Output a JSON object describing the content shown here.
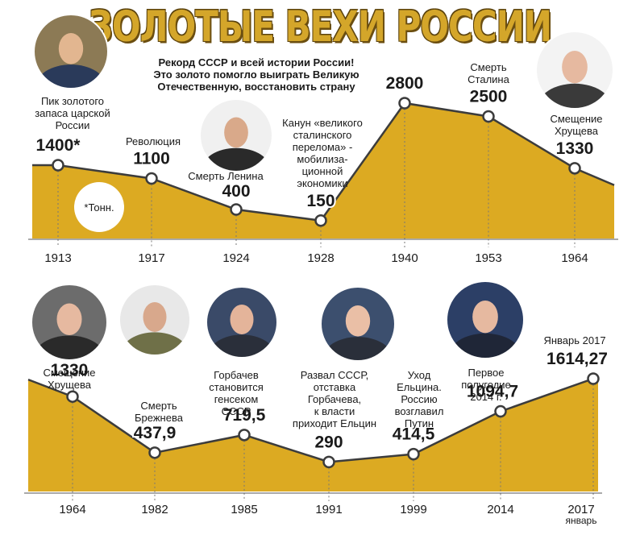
{
  "title": "ЗОЛОТЫЕ ВЕХИ РОССИИ",
  "colors": {
    "fill": "#dcaa22",
    "line": "#3c3c3c",
    "axis": "#555555",
    "title_gold": "#d4a62a"
  },
  "chart_data": [
    {
      "type": "area",
      "x": [
        "1913",
        "1917",
        "1924",
        "1928",
        "1940",
        "1953",
        "1964"
      ],
      "values": [
        1400,
        1100,
        400,
        150,
        2800,
        2500,
        1330
      ],
      "value_labels": [
        "1400*",
        "1100",
        "400",
        "150",
        "2800",
        "2500",
        "1330"
      ],
      "annotations": [
        [
          "Пик золотого",
          "запаса царской",
          "России"
        ],
        [
          "Революция"
        ],
        [
          "Смерть Ленина"
        ],
        [
          "Канун «великого",
          "сталинского",
          "перелома» -",
          "мобилиза-",
          "ционной",
          "экономики"
        ],
        [
          "Рекорд СССР и всей истории России!",
          "Это золото помогло выиграть Великую",
          "Отечественную, восстановить страну"
        ],
        [
          "Смерть",
          "Сталина"
        ],
        [
          "Смещение",
          "Хрущева"
        ]
      ],
      "unit_note": "*Тонн."
    },
    {
      "type": "area",
      "x": [
        "1964",
        "1982",
        "1985",
        "1991",
        "1999",
        "2014",
        "2017"
      ],
      "x_sub": [
        "",
        "",
        "",
        "",
        "",
        "",
        "январь"
      ],
      "values": [
        1330,
        437.9,
        719.5,
        290,
        414.5,
        1094.7,
        1614.27
      ],
      "value_labels": [
        "1330",
        "437,9",
        "719,5",
        "290",
        "414,5",
        "1094,7",
        "1614,27"
      ],
      "annotations": [
        [
          "Смещение",
          "Хрущева"
        ],
        [
          "Смерть",
          "Брежнева"
        ],
        [
          "Горбачев",
          "становится",
          "генсеком",
          "СССР"
        ],
        [
          "Развал СССР,",
          "отставка",
          "Горбачева,",
          "к власти",
          "приходит Ельцин"
        ],
        [
          "Уход",
          "Ельцина.",
          "Россию",
          "возглавил",
          "Путин"
        ],
        [
          "Первое",
          "полугодие",
          "2014 г."
        ],
        [
          "Январь 2017"
        ]
      ]
    }
  ],
  "portraits": [
    "portrait-nicholas-ii-icon",
    "portrait-lenin-icon",
    "portrait-stalin-icon",
    "portrait-khrushchev-icon",
    "portrait-khrushchev-icon",
    "portrait-brezhnev-icon",
    "portrait-gorbachev-icon",
    "portrait-yeltsin-icon",
    "portrait-putin-icon"
  ]
}
